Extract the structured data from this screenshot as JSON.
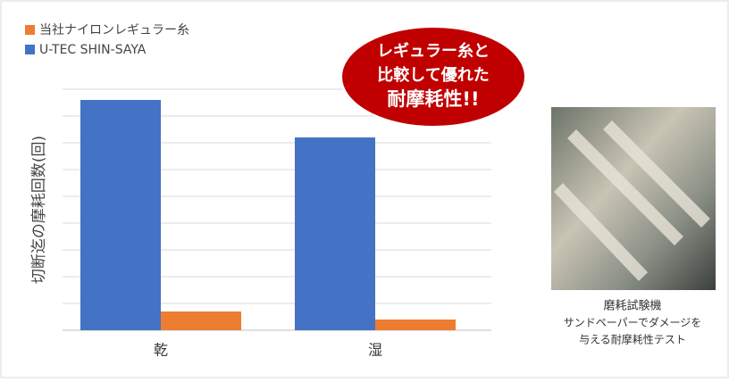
{
  "chart_data": {
    "type": "bar",
    "y_label": "切断迄の摩耗回数(回)",
    "categories": [
      "乾",
      "湿"
    ],
    "series": [
      {
        "name": "当社ナイロンレギュラー糸",
        "color": "#ed7d31",
        "values": [
          0.7,
          0.4
        ]
      },
      {
        "name": "U-TEC SHIN-SAYA",
        "color": "#4472c4",
        "values": [
          8.6,
          7.2
        ]
      }
    ],
    "ylim": [
      0,
      9
    ],
    "yticks": [
      0,
      1,
      2,
      3,
      4,
      5,
      6,
      7,
      8,
      9
    ],
    "grid": true,
    "annotation": [
      "レギュラー糸と",
      "比較して優れた",
      "耐摩耗性!!"
    ]
  },
  "photo": {
    "title": "磨耗試験機",
    "caption": [
      "サンドペーパーでダメージを",
      "与える耐摩耗性テスト"
    ]
  }
}
